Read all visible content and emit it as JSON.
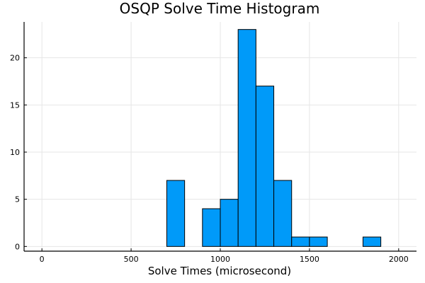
{
  "chart_data": {
    "type": "bar",
    "title": "OSQP Solve Time Histogram",
    "xlabel": "Solve Times (microsecond)",
    "ylabel": "",
    "xlim": [
      -100,
      2100
    ],
    "ylim": [
      -0.5,
      23.8
    ],
    "xticks": [
      0,
      500,
      1000,
      1500,
      2000
    ],
    "yticks": [
      0,
      5,
      10,
      15,
      20
    ],
    "grid": true,
    "legend": "none",
    "bar_color": "#009AF9",
    "bin_width": 100,
    "bins": [
      {
        "start": 0,
        "count": 0
      },
      {
        "start": 100,
        "count": 0
      },
      {
        "start": 200,
        "count": 0
      },
      {
        "start": 300,
        "count": 0
      },
      {
        "start": 400,
        "count": 0
      },
      {
        "start": 500,
        "count": 0
      },
      {
        "start": 600,
        "count": 0
      },
      {
        "start": 700,
        "count": 7
      },
      {
        "start": 800,
        "count": 0
      },
      {
        "start": 900,
        "count": 4
      },
      {
        "start": 1000,
        "count": 5
      },
      {
        "start": 1100,
        "count": 23
      },
      {
        "start": 1200,
        "count": 17
      },
      {
        "start": 1300,
        "count": 7
      },
      {
        "start": 1400,
        "count": 1
      },
      {
        "start": 1500,
        "count": 1
      },
      {
        "start": 1600,
        "count": 0
      },
      {
        "start": 1700,
        "count": 0
      },
      {
        "start": 1800,
        "count": 1
      },
      {
        "start": 1900,
        "count": 0
      }
    ]
  }
}
